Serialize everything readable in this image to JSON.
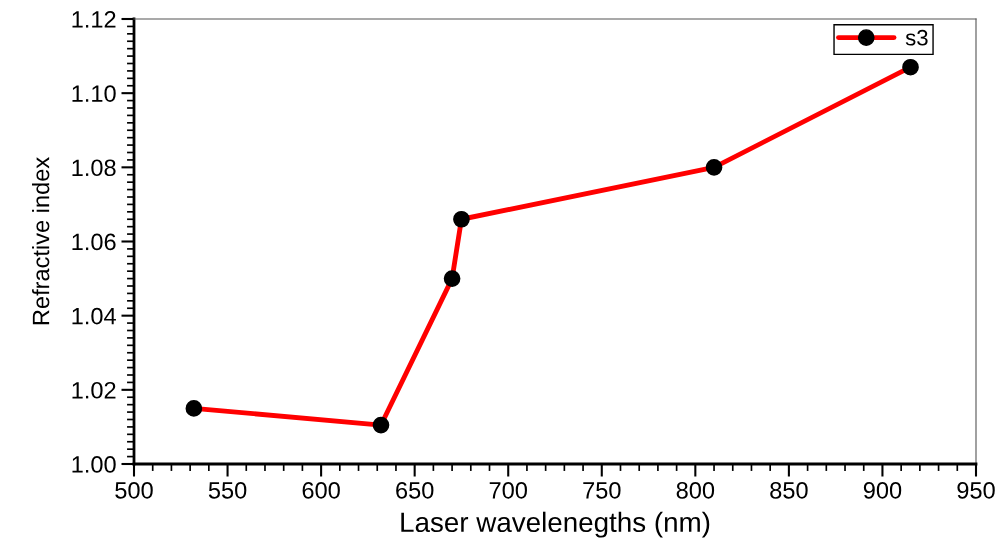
{
  "chart_data": {
    "type": "line",
    "xlabel": "Laser wavelenegths (nm)",
    "ylabel": "Refractive index",
    "x": [
      532,
      632,
      670,
      675,
      810,
      915
    ],
    "series": [
      {
        "name": "s3",
        "color": "#ff0000",
        "values": [
          1.015,
          1.0105,
          1.05,
          1.066,
          1.08,
          1.107
        ]
      }
    ],
    "xlim": [
      500,
      950
    ],
    "xticks": [
      500,
      550,
      600,
      650,
      700,
      750,
      800,
      850,
      900,
      950
    ],
    "ylim": [
      1.0,
      1.12
    ],
    "yticks": [
      {
        "value": 1.0,
        "label": "1.00"
      },
      {
        "value": 1.02,
        "label": "1.02"
      },
      {
        "value": 1.04,
        "label": "1.04"
      },
      {
        "value": 1.06,
        "label": "1.06"
      },
      {
        "value": 1.08,
        "label": "1.08"
      },
      {
        "value": 1.1,
        "label": "1.10"
      },
      {
        "value": 1.12,
        "label": "1.12"
      }
    ],
    "marker": "circle",
    "line_style": "solid",
    "legend": "top right",
    "grid": false
  }
}
